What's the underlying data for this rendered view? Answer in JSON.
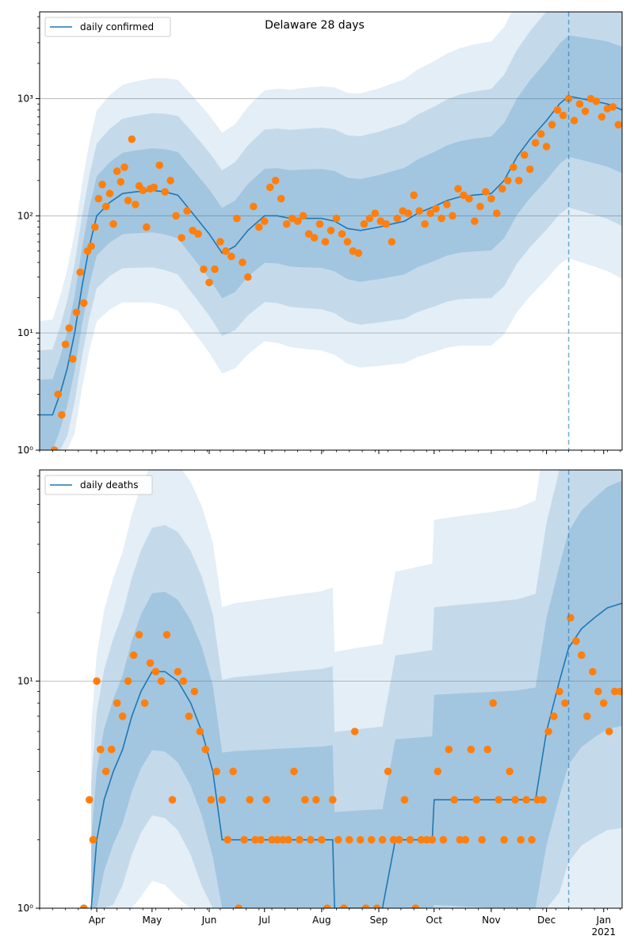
{
  "chart_data": [
    {
      "type": "line",
      "title": "Delaware 28 days",
      "yscale": "log",
      "ylim": [
        1,
        5500
      ],
      "xlim": [
        "2020-03-01",
        "2021-01-11"
      ],
      "y_tick_labels": [
        "10⁰",
        "10¹",
        "10²",
        "10³"
      ],
      "y_ticks": [
        1,
        10,
        100,
        1000
      ],
      "grid": "y-major",
      "legend": "upper-left",
      "forecast_start": "2020-12-13",
      "series": [
        {
          "name": "daily confirmed",
          "role": "model-line",
          "x": [
            "2020-03-01",
            "2020-03-08",
            "2020-03-12",
            "2020-03-16",
            "2020-03-20",
            "2020-03-24",
            "2020-03-28",
            "2020-04-01",
            "2020-04-08",
            "2020-04-15",
            "2020-04-22",
            "2020-05-01",
            "2020-05-08",
            "2020-05-15",
            "2020-05-22",
            "2020-06-01",
            "2020-06-08",
            "2020-06-15",
            "2020-06-22",
            "2020-07-01",
            "2020-07-08",
            "2020-07-15",
            "2020-07-22",
            "2020-08-01",
            "2020-08-08",
            "2020-08-15",
            "2020-08-22",
            "2020-09-01",
            "2020-09-08",
            "2020-09-15",
            "2020-09-22",
            "2020-10-01",
            "2020-10-08",
            "2020-10-15",
            "2020-10-22",
            "2020-11-01",
            "2020-11-08",
            "2020-11-15",
            "2020-11-22",
            "2020-12-01",
            "2020-12-08",
            "2020-12-13",
            "2020-12-20",
            "2020-12-27",
            "2021-01-03",
            "2021-01-11"
          ],
          "values": [
            2,
            2,
            3,
            5,
            10,
            25,
            55,
            100,
            130,
            155,
            160,
            165,
            160,
            150,
            110,
            70,
            48,
            55,
            75,
            100,
            100,
            95,
            95,
            95,
            90,
            78,
            75,
            80,
            85,
            90,
            105,
            120,
            135,
            145,
            150,
            155,
            200,
            320,
            450,
            650,
            900,
            1050,
            1000,
            950,
            900,
            800
          ]
        },
        {
          "name": "observed daily confirmed",
          "role": "observations",
          "x": [
            "2020-03-09",
            "2020-03-11",
            "2020-03-13",
            "2020-03-15",
            "2020-03-17",
            "2020-03-19",
            "2020-03-21",
            "2020-03-23",
            "2020-03-25",
            "2020-03-27",
            "2020-03-29",
            "2020-03-31",
            "2020-04-02",
            "2020-04-04",
            "2020-04-06",
            "2020-04-08",
            "2020-04-10",
            "2020-04-12",
            "2020-04-14",
            "2020-04-16",
            "2020-04-18",
            "2020-04-20",
            "2020-04-22",
            "2020-04-24",
            "2020-04-26",
            "2020-04-28",
            "2020-04-30",
            "2020-05-02",
            "2020-05-05",
            "2020-05-08",
            "2020-05-11",
            "2020-05-14",
            "2020-05-17",
            "2020-05-20",
            "2020-05-23",
            "2020-05-26",
            "2020-05-29",
            "2020-06-01",
            "2020-06-04",
            "2020-06-07",
            "2020-06-10",
            "2020-06-13",
            "2020-06-16",
            "2020-06-19",
            "2020-06-22",
            "2020-06-25",
            "2020-06-28",
            "2020-07-01",
            "2020-07-04",
            "2020-07-07",
            "2020-07-10",
            "2020-07-13",
            "2020-07-16",
            "2020-07-19",
            "2020-07-22",
            "2020-07-25",
            "2020-07-28",
            "2020-07-31",
            "2020-08-03",
            "2020-08-06",
            "2020-08-09",
            "2020-08-12",
            "2020-08-15",
            "2020-08-18",
            "2020-08-21",
            "2020-08-24",
            "2020-08-27",
            "2020-08-30",
            "2020-09-02",
            "2020-09-05",
            "2020-09-08",
            "2020-09-11",
            "2020-09-14",
            "2020-09-17",
            "2020-09-20",
            "2020-09-23",
            "2020-09-26",
            "2020-09-29",
            "2020-10-02",
            "2020-10-05",
            "2020-10-08",
            "2020-10-11",
            "2020-10-14",
            "2020-10-17",
            "2020-10-20",
            "2020-10-23",
            "2020-10-26",
            "2020-10-29",
            "2020-11-01",
            "2020-11-04",
            "2020-11-07",
            "2020-11-10",
            "2020-11-13",
            "2020-11-16",
            "2020-11-19",
            "2020-11-22",
            "2020-11-25",
            "2020-11-28",
            "2020-12-01",
            "2020-12-04",
            "2020-12-07",
            "2020-12-10",
            "2020-12-13",
            "2020-12-16",
            "2020-12-19",
            "2020-12-22",
            "2020-12-25",
            "2020-12-28",
            "2020-12-31",
            "2021-01-03",
            "2021-01-06",
            "2021-01-09"
          ],
          "values": [
            1,
            3,
            2,
            8,
            11,
            6,
            15,
            33,
            18,
            50,
            55,
            80,
            140,
            185,
            120,
            155,
            85,
            240,
            195,
            260,
            135,
            450,
            125,
            180,
            165,
            80,
            170,
            175,
            270,
            160,
            200,
            100,
            65,
            110,
            75,
            70,
            35,
            27,
            35,
            60,
            50,
            45,
            95,
            40,
            30,
            120,
            80,
            90,
            175,
            200,
            140,
            85,
            95,
            90,
            100,
            70,
            65,
            85,
            60,
            75,
            95,
            70,
            60,
            50,
            48,
            85,
            95,
            105,
            90,
            85,
            60,
            95,
            110,
            105,
            150,
            110,
            85,
            105,
            115,
            95,
            125,
            100,
            170,
            150,
            140,
            90,
            120,
            160,
            140,
            105,
            170,
            200,
            260,
            200,
            330,
            250,
            420,
            500,
            390,
            600,
            800,
            720,
            1000,
            650,
            900,
            780,
            1000,
            950,
            700,
            820,
            850,
            600
          ]
        }
      ]
    },
    {
      "type": "line",
      "yscale": "log",
      "ylim": [
        1,
        85
      ],
      "xlim": [
        "2020-03-01",
        "2021-01-11"
      ],
      "y_tick_labels": [
        "10⁰",
        "10¹"
      ],
      "y_ticks": [
        1,
        10
      ],
      "grid": "y-major",
      "legend": "upper-left",
      "forecast_start": "2020-12-13",
      "x_tick_labels": [
        "Apr",
        "May",
        "Jun",
        "Jul",
        "Aug",
        "Sep",
        "Oct",
        "Nov",
        "Dec",
        "Jan\n2021"
      ],
      "x_ticks": [
        "2020-04-01",
        "2020-05-01",
        "2020-06-01",
        "2020-07-01",
        "2020-08-01",
        "2020-09-01",
        "2020-10-01",
        "2020-11-01",
        "2020-12-01",
        "2021-01-01"
      ],
      "series": [
        {
          "name": "daily deaths",
          "role": "model-line",
          "x": [
            "2020-03-29",
            "2020-04-01",
            "2020-04-05",
            "2020-04-10",
            "2020-04-15",
            "2020-04-20",
            "2020-04-25",
            "2020-05-01",
            "2020-05-08",
            "2020-05-15",
            "2020-05-22",
            "2020-05-28",
            "2020-06-03",
            "2020-06-08",
            "2020-06-15",
            "2020-07-01",
            "2020-07-15",
            "2020-08-01",
            "2020-08-07",
            "2020-08-08",
            "2020-08-20",
            "2020-09-03",
            "2020-09-10",
            "2020-09-20",
            "2020-09-30",
            "2020-10-01",
            "2020-10-15",
            "2020-11-01",
            "2020-11-15",
            "2020-11-20",
            "2020-11-25",
            "2020-12-01",
            "2020-12-08",
            "2020-12-13",
            "2020-12-20",
            "2020-12-27",
            "2021-01-03",
            "2021-01-11"
          ],
          "values": [
            1,
            2,
            3,
            4,
            5,
            7,
            9,
            11,
            11,
            10,
            8,
            6,
            4,
            2,
            2,
            2,
            2,
            2,
            2,
            1,
            1,
            1,
            2,
            2,
            2,
            3,
            3,
            3,
            3,
            3,
            3,
            6,
            10,
            14,
            17,
            19,
            21,
            22
          ]
        },
        {
          "name": "observed daily deaths",
          "role": "observations",
          "x": [
            "2020-03-25",
            "2020-03-28",
            "2020-03-30",
            "2020-04-01",
            "2020-04-03",
            "2020-04-06",
            "2020-04-09",
            "2020-04-12",
            "2020-04-15",
            "2020-04-18",
            "2020-04-21",
            "2020-04-24",
            "2020-04-27",
            "2020-04-30",
            "2020-05-03",
            "2020-05-06",
            "2020-05-09",
            "2020-05-12",
            "2020-05-15",
            "2020-05-18",
            "2020-05-21",
            "2020-05-24",
            "2020-05-27",
            "2020-05-30",
            "2020-06-02",
            "2020-06-05",
            "2020-06-08",
            "2020-06-11",
            "2020-06-14",
            "2020-06-17",
            "2020-06-20",
            "2020-06-23",
            "2020-06-26",
            "2020-06-29",
            "2020-07-02",
            "2020-07-05",
            "2020-07-08",
            "2020-07-11",
            "2020-07-14",
            "2020-07-17",
            "2020-07-20",
            "2020-07-23",
            "2020-07-26",
            "2020-07-29",
            "2020-08-01",
            "2020-08-04",
            "2020-08-07",
            "2020-08-10",
            "2020-08-13",
            "2020-08-16",
            "2020-08-19",
            "2020-08-22",
            "2020-08-25",
            "2020-08-28",
            "2020-08-31",
            "2020-09-03",
            "2020-09-06",
            "2020-09-09",
            "2020-09-12",
            "2020-09-15",
            "2020-09-18",
            "2020-09-21",
            "2020-09-24",
            "2020-09-27",
            "2020-09-30",
            "2020-10-03",
            "2020-10-06",
            "2020-10-09",
            "2020-10-12",
            "2020-10-15",
            "2020-10-18",
            "2020-10-21",
            "2020-10-24",
            "2020-10-27",
            "2020-10-30",
            "2020-11-02",
            "2020-11-05",
            "2020-11-08",
            "2020-11-11",
            "2020-11-14",
            "2020-11-17",
            "2020-11-20",
            "2020-11-23",
            "2020-11-26",
            "2020-11-29",
            "2020-12-02",
            "2020-12-05",
            "2020-12-08",
            "2020-12-11",
            "2020-12-14",
            "2020-12-17",
            "2020-12-20",
            "2020-12-23",
            "2020-12-26",
            "2020-12-29",
            "2021-01-01",
            "2021-01-04",
            "2021-01-07",
            "2021-01-10"
          ],
          "values": [
            1,
            3,
            2,
            10,
            5,
            4,
            5,
            8,
            7,
            10,
            13,
            16,
            8,
            12,
            11,
            10,
            16,
            3,
            11,
            10,
            7,
            9,
            6,
            5,
            3,
            4,
            3,
            2,
            4,
            1,
            2,
            3,
            2,
            2,
            3,
            2,
            2,
            2,
            2,
            4,
            2,
            3,
            2,
            3,
            2,
            1,
            3,
            2,
            1,
            2,
            6,
            2,
            1,
            2,
            1,
            2,
            4,
            2,
            2,
            3,
            2,
            1,
            2,
            2,
            2,
            4,
            2,
            5,
            3,
            2,
            2,
            5,
            3,
            2,
            5,
            8,
            3,
            2,
            4,
            3,
            2,
            3,
            2,
            3,
            3,
            6,
            7,
            9,
            8,
            19,
            15,
            13,
            7,
            11,
            9,
            8,
            6,
            9,
            9
          ]
        }
      ]
    }
  ]
}
